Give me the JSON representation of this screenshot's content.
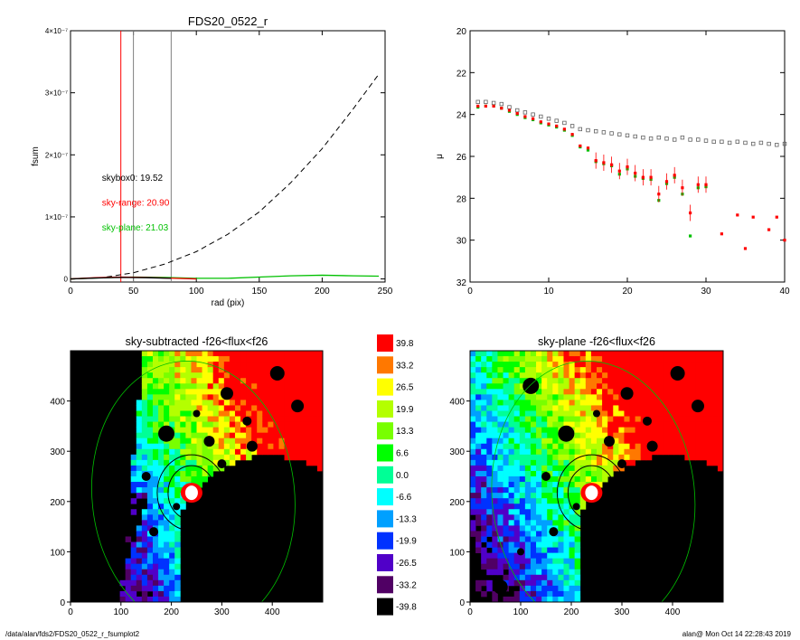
{
  "footer": {
    "path": "/data/alan/fds2/FDS20_0522_r_fsumplot2",
    "stamp": "alan@  Mon Oct 14 22:28:43 2019"
  },
  "chart_data": [
    {
      "id": "fsum",
      "type": "line",
      "title": "FDS20_0522_r",
      "xlabel": "rad (pix)",
      "ylabel": "fsum",
      "xlim": [
        0,
        250
      ],
      "ylim": [
        -5e-09,
        4e-07
      ],
      "xticks": [
        0,
        50,
        100,
        150,
        200,
        250
      ],
      "yticks": [
        {
          "value": 0,
          "label": "0"
        },
        {
          "value": 1e-07,
          "label": "1×10⁻⁷"
        },
        {
          "value": 2e-07,
          "label": "2×10⁻⁷"
        },
        {
          "value": 3e-07,
          "label": "3×10⁻⁷"
        },
        {
          "value": 4e-07,
          "label": "4×10⁻⁷"
        }
      ],
      "vlines": [
        {
          "x": 40,
          "color": "#ff0000"
        },
        {
          "x": 50,
          "color": "#808080"
        },
        {
          "x": 80,
          "color": "#808080"
        }
      ],
      "series": [
        {
          "style": "dashed",
          "color": "#000000",
          "x": [
            0,
            25,
            50,
            75,
            100,
            125,
            150,
            175,
            200,
            225,
            245
          ],
          "y": [
            0,
            2e-09,
            1e-08,
            2.4e-08,
            4.4e-08,
            7.2e-08,
            1.08e-07,
            1.55e-07,
            2.1e-07,
            2.75e-07,
            3.3e-07
          ]
        },
        {
          "style": "solid",
          "color": "#00c000",
          "x": [
            0,
            25,
            50,
            75,
            100,
            125,
            150,
            175,
            200,
            225,
            245
          ],
          "y": [
            0,
            2e-09,
            3e-09,
            2.5e-09,
            1e-09,
            1e-09,
            3e-09,
            5e-09,
            6e-09,
            5e-09,
            4.5e-09
          ]
        },
        {
          "style": "solid",
          "color": "#ff0000",
          "x": [
            0,
            20,
            40,
            60,
            80,
            100
          ],
          "y": [
            0,
            2e-09,
            3e-09,
            2.5e-09,
            1.2e-09,
            0
          ]
        },
        {
          "style": "solid",
          "color": "#000000",
          "x": [
            0,
            20,
            40,
            60,
            80
          ],
          "y": [
            0,
            1.5e-09,
            2.5e-09,
            2e-09,
            1e-09
          ]
        }
      ],
      "annotations": [
        {
          "text": "skybox0: 19.52",
          "color": "#000000",
          "x": 25,
          "y": 1.58e-07
        },
        {
          "text": "sky-range: 20.90",
          "color": "#ff0000",
          "x": 25,
          "y": 1.18e-07
        },
        {
          "text": "sky-plane: 21.03",
          "color": "#00c000",
          "x": 25,
          "y": 7.8e-08
        }
      ]
    },
    {
      "id": "profile",
      "type": "scatter",
      "title": "",
      "xlabel": "",
      "ylabel": "μ",
      "xlim": [
        0,
        40
      ],
      "ylim": [
        32,
        20
      ],
      "xticks": [
        0,
        10,
        20,
        30,
        40
      ],
      "yticks": [
        20,
        22,
        24,
        26,
        28,
        30,
        32
      ],
      "series": [
        {
          "marker": "square-open",
          "color": "#606060",
          "x": [
            1,
            2,
            3,
            4,
            5,
            6,
            7,
            8,
            9,
            10,
            11,
            12,
            13,
            14,
            15,
            16,
            17,
            18,
            19,
            20,
            21,
            22,
            23,
            24,
            25,
            26,
            27,
            28,
            29,
            30,
            31,
            32,
            33,
            34,
            35,
            36,
            37,
            38,
            39,
            40
          ],
          "y": [
            23.4,
            23.4,
            23.45,
            23.5,
            23.65,
            23.8,
            23.9,
            24.0,
            24.1,
            24.2,
            24.3,
            24.4,
            24.55,
            24.7,
            24.75,
            24.8,
            24.85,
            24.9,
            24.95,
            25.0,
            25.05,
            25.1,
            25.15,
            25.1,
            25.15,
            25.2,
            25.1,
            25.2,
            25.2,
            25.25,
            25.3,
            25.3,
            25.35,
            25.3,
            25.35,
            25.4,
            25.35,
            25.4,
            25.45,
            25.4
          ]
        },
        {
          "marker": "square-filled",
          "color": "#00c000",
          "x": [
            1,
            2,
            3,
            4,
            5,
            6,
            7,
            8,
            9,
            10,
            11,
            12,
            13,
            14,
            15,
            16,
            17,
            18,
            19,
            20,
            21,
            22,
            23,
            24,
            25,
            26,
            27,
            28,
            29,
            30
          ],
          "y": [
            23.65,
            23.6,
            23.6,
            23.7,
            23.85,
            24.0,
            24.15,
            24.25,
            24.4,
            24.5,
            24.6,
            24.75,
            25.0,
            25.55,
            25.7,
            26.25,
            26.35,
            26.45,
            26.85,
            26.6,
            26.95,
            27.05,
            27.1,
            28.1,
            27.3,
            27.0,
            27.8,
            29.8,
            27.5,
            27.45
          ]
        },
        {
          "marker": "square-filled",
          "color": "#ff0000",
          "x": [
            1,
            2,
            3,
            4,
            5,
            6,
            7,
            8,
            9,
            10,
            11,
            12,
            13,
            14,
            15,
            16,
            17,
            18,
            19,
            20,
            21,
            22,
            23,
            24,
            25,
            26,
            27,
            28,
            29,
            30,
            32,
            34,
            35,
            36,
            38,
            39,
            40
          ],
          "y": [
            23.6,
            23.6,
            23.6,
            23.7,
            23.8,
            23.95,
            24.1,
            24.2,
            24.35,
            24.45,
            24.55,
            24.7,
            24.95,
            25.5,
            25.6,
            26.2,
            26.3,
            26.4,
            26.7,
            26.5,
            26.8,
            27.0,
            27.0,
            27.8,
            27.2,
            26.9,
            27.5,
            28.7,
            27.35,
            27.35,
            29.7,
            28.8,
            30.4,
            28.9,
            29.5,
            28.9,
            30.0
          ]
        }
      ]
    },
    {
      "id": "map-left",
      "type": "heatmap",
      "title": "sky-subtracted -f26<flux<f26",
      "xlim": [
        0,
        500
      ],
      "ylim": [
        0,
        500
      ],
      "xticks": [
        0,
        100,
        200,
        300,
        400
      ],
      "yticks": [
        0,
        100,
        200,
        300,
        400
      ]
    },
    {
      "id": "map-right",
      "type": "heatmap",
      "title": "sky-plane -f26<flux<f26",
      "xlim": [
        0,
        500
      ],
      "ylim": [
        0,
        500
      ],
      "xticks": [
        0,
        100,
        200,
        300,
        400
      ],
      "yticks": [
        0,
        100,
        200,
        300,
        400
      ]
    },
    {
      "id": "colorbar",
      "type": "heatmap",
      "levels": [
        {
          "label": "39.8",
          "color": "#ff0000"
        },
        {
          "label": "33.2",
          "color": "#ff7800"
        },
        {
          "label": "26.5",
          "color": "#ffff00"
        },
        {
          "label": "19.9",
          "color": "#b4ff00"
        },
        {
          "label": "13.3",
          "color": "#78ff00"
        },
        {
          "label": "6.6",
          "color": "#00ff00"
        },
        {
          "label": "0.0",
          "color": "#00ff96"
        },
        {
          "label": "-6.6",
          "color": "#00ffff"
        },
        {
          "label": "-13.3",
          "color": "#00a0ff"
        },
        {
          "label": "-19.9",
          "color": "#0032ff"
        },
        {
          "label": "-26.5",
          "color": "#5000c8"
        },
        {
          "label": "-33.2",
          "color": "#500064"
        },
        {
          "label": "-39.8",
          "color": "#000000"
        }
      ]
    }
  ]
}
